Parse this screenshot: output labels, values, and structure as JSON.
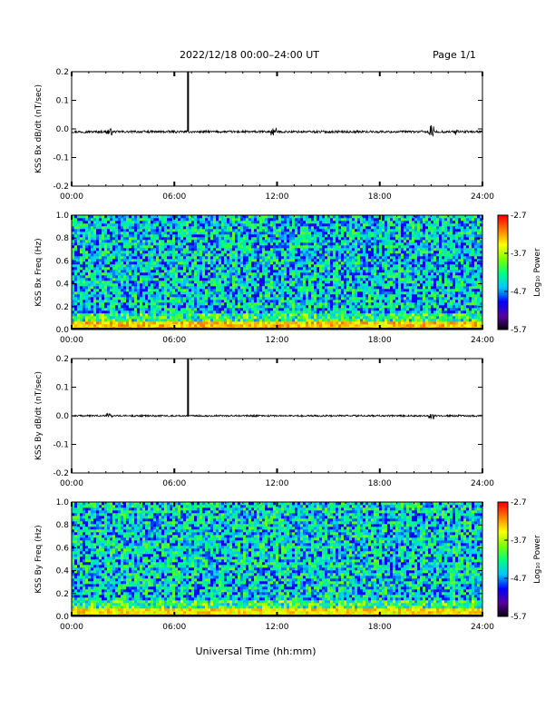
{
  "header": {
    "title": "2022/12/18  00:00–24:00 UT",
    "page": "Page 1/1"
  },
  "xlabel": "Universal Time (hh:mm)",
  "colors": {
    "trace": "#000000",
    "colormap": [
      "#000000",
      "#5a00a0",
      "#0000ff",
      "#00c8ff",
      "#00ff80",
      "#80ff00",
      "#ffff00",
      "#ff8000",
      "#ff0000"
    ]
  },
  "chart_data": [
    {
      "type": "line",
      "ylabel": "KSS Bx dB/dt (nT/sec)",
      "ylim": [
        -0.2,
        0.2
      ],
      "yticks": [
        "-0.2",
        "-0.1",
        "0.0",
        "0.1",
        "0.2"
      ],
      "xticks": [
        "00:00",
        "06:00",
        "12:00",
        "18:00",
        "24:00"
      ],
      "xlim_hours": [
        0,
        24
      ],
      "baseline": -0.01,
      "noise": 0.004,
      "spike": {
        "x_hours": 6.8,
        "y": 0.2
      },
      "bursts": [
        {
          "x_hours": 2.2,
          "amp": 0.008
        },
        {
          "x_hours": 11.8,
          "amp": 0.01
        },
        {
          "x_hours": 21.0,
          "amp": 0.02
        },
        {
          "x_hours": 22.5,
          "amp": 0.008
        }
      ]
    },
    {
      "type": "heatmap",
      "ylabel": "KSS Bx Freq (Hz)",
      "ylim": [
        0.0,
        1.0
      ],
      "yticks": [
        "0.0",
        "0.2",
        "0.4",
        "0.6",
        "0.8",
        "1.0"
      ],
      "xticks": [
        "00:00",
        "06:00",
        "12:00",
        "18:00",
        "24:00"
      ],
      "colorbar": {
        "label": "Log₁₀ Power",
        "ticks": [
          "-2.7",
          "-3.7",
          "-4.7",
          "-5.7"
        ],
        "range": [
          -5.7,
          -2.7
        ]
      },
      "background_level": -4.5,
      "low_freq_enhancement": -3.3,
      "seed": 11
    },
    {
      "type": "line",
      "ylabel": "KSS By dB/dt (nT/sec)",
      "ylim": [
        -0.2,
        0.2
      ],
      "yticks": [
        "-0.2",
        "-0.1",
        "0.0",
        "0.1",
        "0.2"
      ],
      "xticks": [
        "00:00",
        "06:00",
        "12:00",
        "18:00",
        "24:00"
      ],
      "xlim_hours": [
        0,
        24
      ],
      "baseline": 0.0,
      "noise": 0.003,
      "spike": {
        "x_hours": 6.8,
        "y": 0.2
      },
      "bursts": [
        {
          "x_hours": 2.2,
          "amp": 0.006
        },
        {
          "x_hours": 21.0,
          "amp": 0.01
        }
      ]
    },
    {
      "type": "heatmap",
      "ylabel": "KSS By Freq (Hz)",
      "ylim": [
        0.0,
        1.0
      ],
      "yticks": [
        "0.0",
        "0.2",
        "0.4",
        "0.6",
        "0.8",
        "1.0"
      ],
      "xticks": [
        "00:00",
        "06:00",
        "12:00",
        "18:00",
        "24:00"
      ],
      "colorbar": {
        "label": "Log₁₀ Power",
        "ticks": [
          "-2.7",
          "-3.7",
          "-4.7",
          "-5.7"
        ],
        "range": [
          -5.7,
          -2.7
        ]
      },
      "background_level": -4.45,
      "low_freq_enhancement": -3.4,
      "seed": 23
    }
  ]
}
